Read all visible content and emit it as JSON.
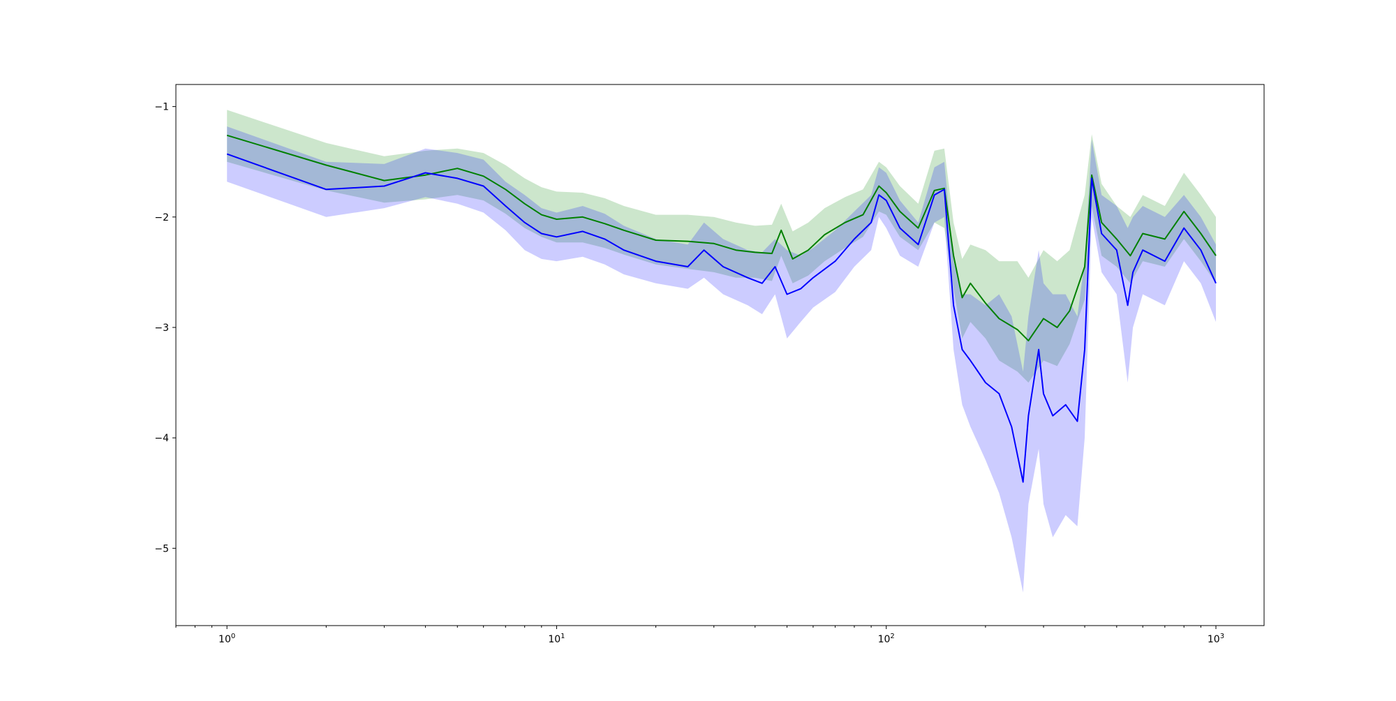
{
  "chart_data": {
    "type": "line",
    "title": "",
    "xlabel": "",
    "ylabel": "",
    "xscale": "log",
    "xlim": [
      0.7,
      1400
    ],
    "ylim": [
      -5.7,
      -0.8
    ],
    "grid": false,
    "x_ticks": [
      {
        "value": 1,
        "base": "10",
        "exp": "0"
      },
      {
        "value": 10,
        "base": "10",
        "exp": "1"
      },
      {
        "value": 100,
        "base": "10",
        "exp": "2"
      },
      {
        "value": 1000,
        "base": "10",
        "exp": "3"
      }
    ],
    "y_ticks": [
      {
        "value": -1,
        "label": "−1"
      },
      {
        "value": -2,
        "label": "−2"
      },
      {
        "value": -3,
        "label": "−3"
      },
      {
        "value": -4,
        "label": "−4"
      },
      {
        "value": -5,
        "label": "−5"
      }
    ],
    "series": [
      {
        "color": "#008000",
        "band_color": "#008000",
        "band_opacity": 0.2,
        "x": [
          1,
          2,
          3,
          4,
          5,
          6,
          7,
          8,
          9,
          10,
          12,
          14,
          16,
          20,
          25,
          30,
          35,
          40,
          45,
          48,
          52,
          58,
          65,
          75,
          85,
          95,
          100,
          110,
          125,
          140,
          150,
          160,
          170,
          180,
          200,
          220,
          250,
          270,
          300,
          330,
          360,
          400,
          420,
          450,
          500,
          550,
          600,
          700,
          800,
          900,
          1000
        ],
        "y": [
          -1.26,
          -1.53,
          -1.67,
          -1.62,
          -1.56,
          -1.63,
          -1.75,
          -1.88,
          -1.98,
          -2.02,
          -2.0,
          -2.06,
          -2.12,
          -2.21,
          -2.22,
          -2.24,
          -2.3,
          -2.32,
          -2.33,
          -2.12,
          -2.38,
          -2.3,
          -2.16,
          -2.05,
          -1.98,
          -1.72,
          -1.78,
          -1.95,
          -2.1,
          -1.76,
          -1.74,
          -2.35,
          -2.73,
          -2.6,
          -2.78,
          -2.92,
          -3.02,
          -3.12,
          -2.92,
          -3.0,
          -2.85,
          -2.45,
          -1.62,
          -2.05,
          -2.2,
          -2.35,
          -2.15,
          -2.2,
          -1.95,
          -2.15,
          -2.35
        ],
        "lower": [
          -1.5,
          -1.76,
          -1.87,
          -1.84,
          -1.8,
          -1.85,
          -1.97,
          -2.1,
          -2.18,
          -2.23,
          -2.23,
          -2.28,
          -2.34,
          -2.43,
          -2.47,
          -2.5,
          -2.55,
          -2.55,
          -2.58,
          -2.35,
          -2.6,
          -2.53,
          -2.4,
          -2.28,
          -2.18,
          -1.95,
          -1.98,
          -2.18,
          -2.3,
          -2.05,
          -2.1,
          -2.65,
          -3.1,
          -2.95,
          -3.1,
          -3.3,
          -3.4,
          -3.5,
          -3.3,
          -3.35,
          -3.15,
          -2.75,
          -1.9,
          -2.35,
          -2.45,
          -2.6,
          -2.4,
          -2.45,
          -2.2,
          -2.4,
          -2.6
        ],
        "upper": [
          -1.03,
          -1.33,
          -1.45,
          -1.4,
          -1.38,
          -1.42,
          -1.53,
          -1.65,
          -1.73,
          -1.77,
          -1.78,
          -1.83,
          -1.9,
          -1.98,
          -1.98,
          -2.0,
          -2.05,
          -2.08,
          -2.07,
          -1.88,
          -2.13,
          -2.05,
          -1.92,
          -1.82,
          -1.75,
          -1.5,
          -1.55,
          -1.72,
          -1.88,
          -1.4,
          -1.38,
          -2.05,
          -2.38,
          -2.25,
          -2.3,
          -2.4,
          -2.4,
          -2.55,
          -2.3,
          -2.4,
          -2.3,
          -1.8,
          -1.25,
          -1.7,
          -1.9,
          -2.0,
          -1.8,
          -1.9,
          -1.6,
          -1.8,
          -2.0
        ]
      },
      {
        "color": "#0000ff",
        "band_color": "#0000ff",
        "band_opacity": 0.2,
        "x": [
          1,
          2,
          3,
          4,
          5,
          6,
          7,
          8,
          9,
          10,
          12,
          14,
          16,
          20,
          25,
          28,
          32,
          38,
          42,
          46,
          50,
          55,
          60,
          70,
          80,
          90,
          95,
          100,
          110,
          125,
          140,
          150,
          160,
          170,
          180,
          200,
          220,
          240,
          260,
          270,
          290,
          300,
          320,
          350,
          380,
          400,
          420,
          450,
          500,
          540,
          560,
          600,
          700,
          800,
          900,
          1000
        ],
        "y": [
          -1.43,
          -1.75,
          -1.72,
          -1.6,
          -1.65,
          -1.72,
          -1.9,
          -2.05,
          -2.15,
          -2.18,
          -2.13,
          -2.2,
          -2.3,
          -2.4,
          -2.45,
          -2.3,
          -2.45,
          -2.55,
          -2.6,
          -2.45,
          -2.7,
          -2.65,
          -2.55,
          -2.4,
          -2.2,
          -2.05,
          -1.8,
          -1.85,
          -2.1,
          -2.25,
          -1.8,
          -1.75,
          -2.8,
          -3.2,
          -3.3,
          -3.5,
          -3.6,
          -3.9,
          -4.4,
          -3.8,
          -3.2,
          -3.6,
          -3.8,
          -3.7,
          -3.85,
          -3.2,
          -1.65,
          -2.15,
          -2.3,
          -2.8,
          -2.5,
          -2.3,
          -2.4,
          -2.1,
          -2.3,
          -2.6
        ],
        "lower": [
          -1.68,
          -2.0,
          -1.92,
          -1.82,
          -1.88,
          -1.96,
          -2.12,
          -2.3,
          -2.38,
          -2.4,
          -2.36,
          -2.43,
          -2.52,
          -2.6,
          -2.65,
          -2.55,
          -2.7,
          -2.8,
          -2.88,
          -2.7,
          -3.1,
          -2.95,
          -2.82,
          -2.68,
          -2.45,
          -2.3,
          -2.0,
          -2.1,
          -2.35,
          -2.45,
          -2.05,
          -2.0,
          -3.2,
          -3.7,
          -3.9,
          -4.2,
          -4.5,
          -4.9,
          -5.4,
          -4.6,
          -4.1,
          -4.6,
          -4.9,
          -4.7,
          -4.8,
          -4.0,
          -2.0,
          -2.5,
          -2.7,
          -3.5,
          -3.0,
          -2.7,
          -2.8,
          -2.4,
          -2.6,
          -2.95
        ],
        "upper": [
          -1.18,
          -1.5,
          -1.52,
          -1.38,
          -1.42,
          -1.48,
          -1.68,
          -1.8,
          -1.92,
          -1.96,
          -1.9,
          -1.97,
          -2.08,
          -2.2,
          -2.25,
          -2.05,
          -2.2,
          -2.3,
          -2.32,
          -2.2,
          -2.3,
          -2.35,
          -2.28,
          -2.12,
          -1.95,
          -1.8,
          -1.55,
          -1.6,
          -1.85,
          -2.05,
          -1.55,
          -1.5,
          -2.4,
          -2.7,
          -2.7,
          -2.8,
          -2.7,
          -2.9,
          -3.4,
          -2.9,
          -2.3,
          -2.6,
          -2.7,
          -2.7,
          -2.9,
          -2.4,
          -1.3,
          -1.8,
          -1.9,
          -2.1,
          -2.0,
          -1.9,
          -2.0,
          -1.8,
          -2.0,
          -2.25
        ]
      }
    ]
  }
}
